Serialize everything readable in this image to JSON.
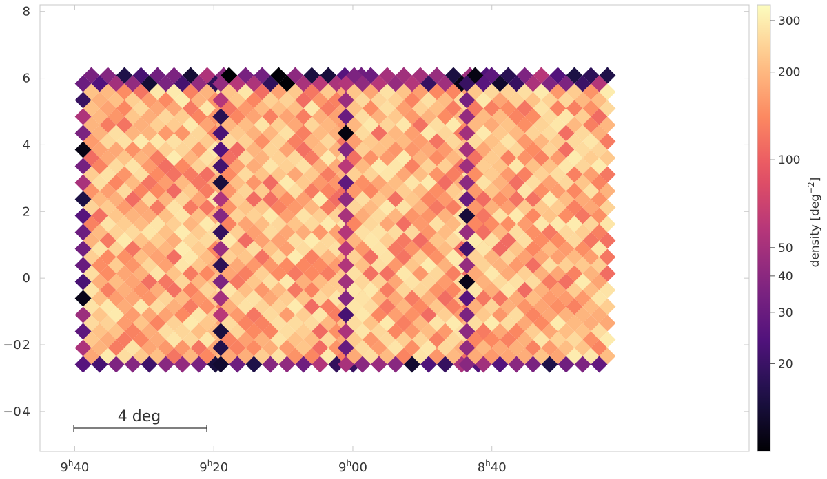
{
  "chart_data": {
    "type": "heatmap",
    "title": "",
    "xlabel": "",
    "ylabel": "",
    "x_ticks": [
      {
        "label_main": "9",
        "label_sup": "h",
        "label_tail": "40",
        "ra_hours": 9.6667
      },
      {
        "label_main": "9",
        "label_sup": "h",
        "label_tail": "20",
        "ra_hours": 9.3333
      },
      {
        "label_main": "9",
        "label_sup": "h",
        "label_tail": "00",
        "ra_hours": 9.0
      },
      {
        "label_main": "8",
        "label_sup": "h",
        "label_tail": "40",
        "ra_hours": 8.6667
      }
    ],
    "y_ticks": [
      {
        "label": "8",
        "value": 8
      },
      {
        "label": "6",
        "value": 6
      },
      {
        "label": "4",
        "value": 4
      },
      {
        "label": "2",
        "value": 2
      },
      {
        "label": "0",
        "value": 0
      },
      {
        "label": "−0 2",
        "value": -2
      },
      {
        "label": "−0 4",
        "value": -4
      }
    ],
    "xlim_ra_hours": [
      9.75,
      8.05
    ],
    "ylim": [
      -5.2,
      8.2
    ],
    "scale_bar": {
      "label": "4 deg",
      "length_deg": 4
    },
    "colorbar": {
      "label": "density [deg",
      "label_sup": "−2",
      "label_close": "]",
      "scale": "log",
      "range": [
        10,
        340
      ],
      "ticks": [
        {
          "label": "300",
          "value": 300
        },
        {
          "label": "200",
          "value": 200
        },
        {
          "label": "100",
          "value": 100
        },
        {
          "label": "50",
          "value": 50
        },
        {
          "label": "40",
          "value": 40
        },
        {
          "label": "30",
          "value": 30
        },
        {
          "label": "20",
          "value": 20
        }
      ],
      "colormap": "magma",
      "colors": [
        "#000004",
        "#1d1147",
        "#51127c",
        "#822681",
        "#b73779",
        "#e75263",
        "#fc8961",
        "#fec488",
        "#fcfdbf"
      ]
    },
    "footprint": {
      "description_values": "four overlapping diamond-tiled survey fields",
      "fields": [
        {
          "ra_center_hours": 9.47,
          "dec_center": 1.7,
          "density_typical": 170
        },
        {
          "ra_center_hours": 9.14,
          "dec_center": 1.7,
          "density_typical": 175
        },
        {
          "ra_center_hours": 8.84,
          "dec_center": 1.7,
          "density_typical": 180
        },
        {
          "ra_center_hours": 8.55,
          "dec_center": 1.7,
          "density_typical": 175
        }
      ],
      "edge_density_range": [
        10,
        60
      ],
      "interior_density_range": [
        110,
        300
      ]
    }
  }
}
